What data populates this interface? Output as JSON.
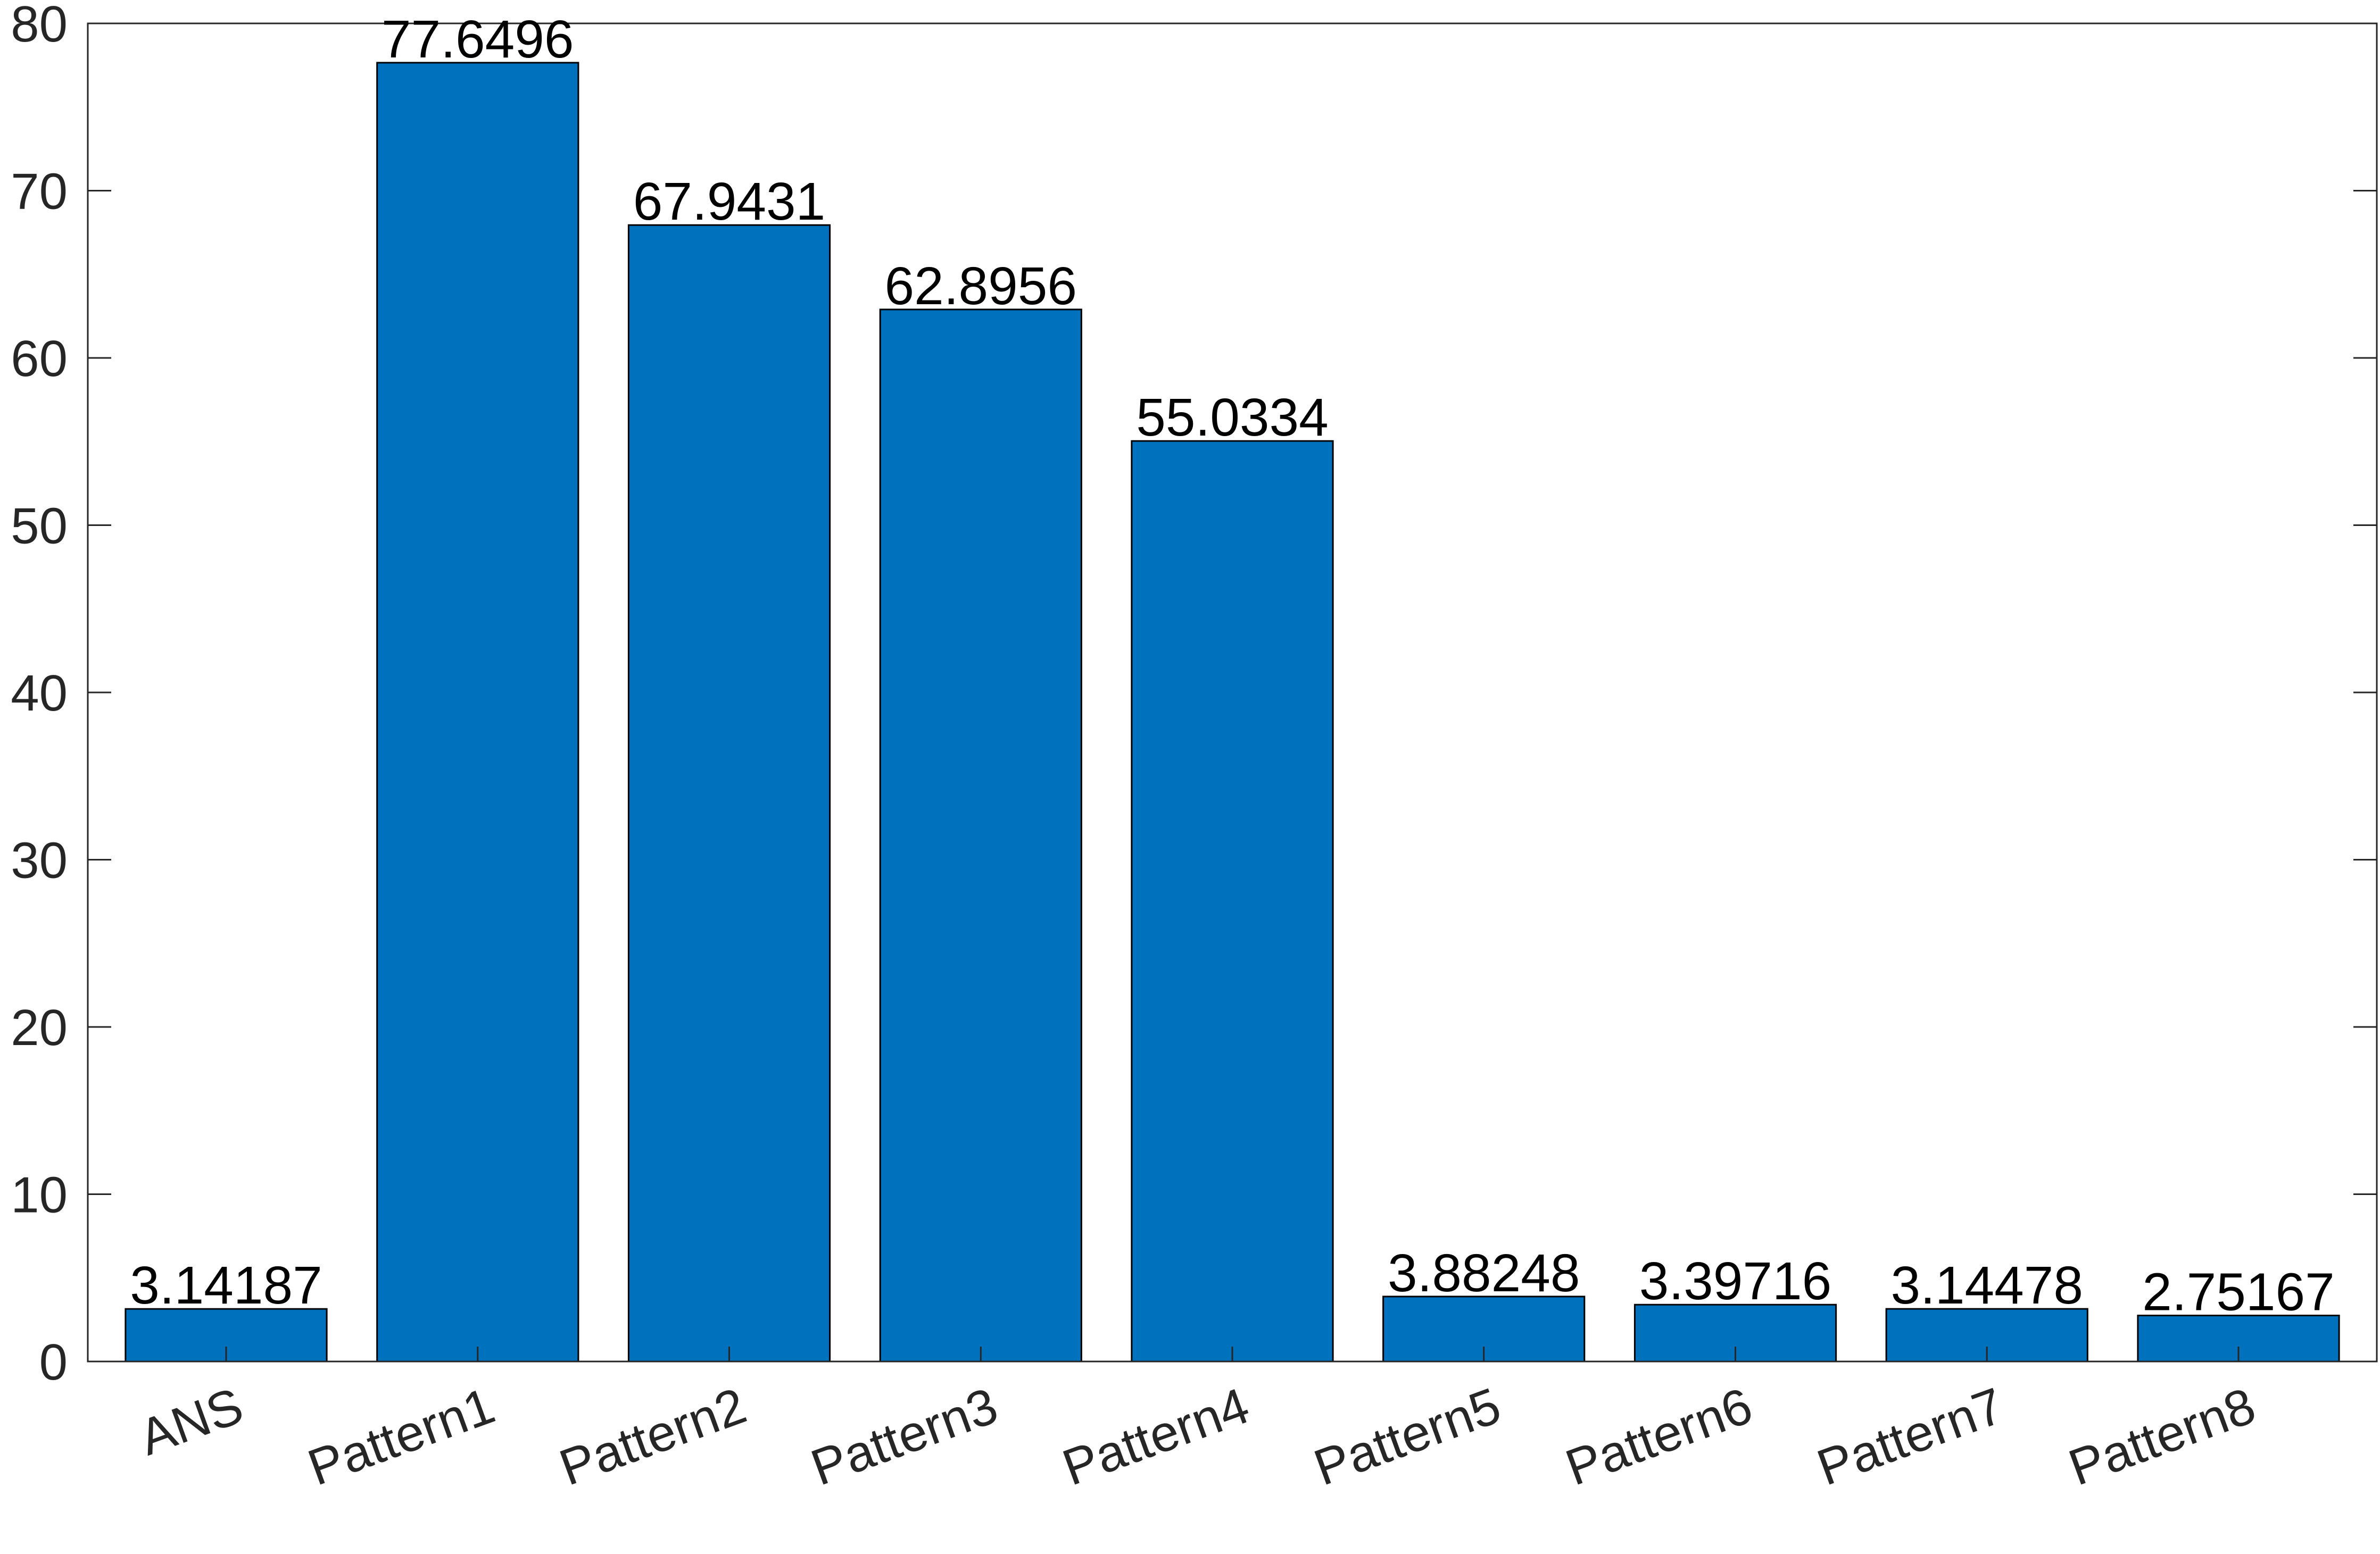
{
  "chart_data": {
    "type": "bar",
    "title": "",
    "xlabel": "",
    "ylabel": "",
    "categories": [
      "ANS",
      "Pattern1",
      "Pattern2",
      "Pattern3",
      "Pattern4",
      "Pattern5",
      "Pattern6",
      "Pattern7",
      "Pattern8"
    ],
    "values": [
      3.14187,
      77.6496,
      67.9431,
      62.8956,
      55.0334,
      3.88248,
      3.39716,
      3.14478,
      2.75167
    ],
    "data_labels": [
      "3.14187",
      "77.6496",
      "67.9431",
      "62.8956",
      "55.0334",
      "3.88248",
      "3.39716",
      "3.14478",
      "2.75167"
    ],
    "ylim": [
      0,
      80
    ],
    "yticks": [
      0,
      10,
      20,
      30,
      40,
      50,
      60,
      70,
      80
    ],
    "ytick_labels": [
      "0",
      "10",
      "20",
      "30",
      "40",
      "50",
      "60",
      "70",
      "80"
    ],
    "grid": false,
    "legend": "none",
    "bar_color": "#0072BD",
    "bar_edge_color": "#000000",
    "axis_color": "#262626",
    "tick_label_color": "#262626",
    "data_label_color": "#000000",
    "x_tick_rotation_deg": 20
  }
}
